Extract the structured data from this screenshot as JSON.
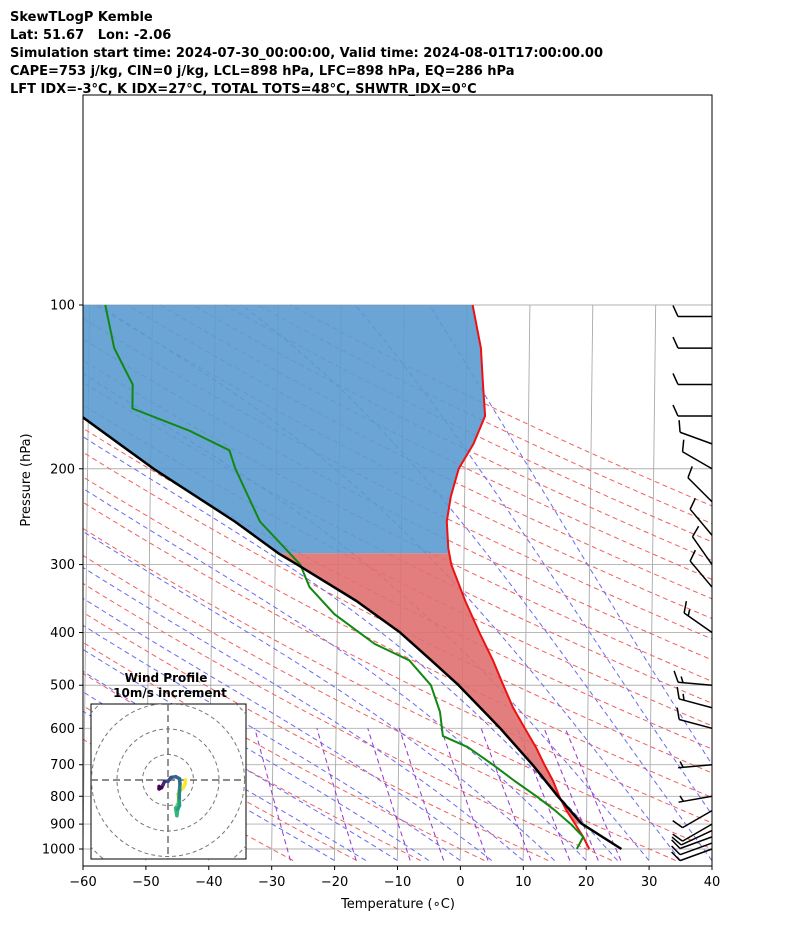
{
  "header": {
    "lines": [
      "SkewTLogP Kemble",
      "Lat: 51.67   Lon: -2.06",
      "Simulation start time: 2024-07-30_00:00:00, Valid time: 2024-08-01T17:00:00.00",
      "CAPE=753 j/kg, CIN=0 j/kg, LCL=898 hPa, LFC=898 hPa, EQ=286 hPa",
      "LFT IDX=-3°C, K IDX=27°C, TOTAL TOTS=48°C, SHWTR_IDX=0°C"
    ]
  },
  "chart_data": [
    {
      "type": "line",
      "subtype": "skew-t log-p",
      "xlabel": "Temperature (∘C)",
      "ylabel": "Pressure (hPa)",
      "xlim": [
        -60,
        40
      ],
      "ylim_hpa": [
        1050,
        100
      ],
      "y_scale": "log",
      "x_ticks": [
        "−60",
        "−50",
        "−40",
        "−30",
        "−20",
        "−10",
        "0",
        "10",
        "20",
        "30",
        "40"
      ],
      "x_tick_values": [
        -60,
        -50,
        -40,
        -30,
        -20,
        -10,
        0,
        10,
        20,
        30,
        40
      ],
      "y_ticks": [
        "100",
        "200",
        "300",
        "400",
        "500",
        "600",
        "700",
        "800",
        "900",
        "1000"
      ],
      "y_tick_values": [
        100,
        200,
        300,
        400,
        500,
        600,
        700,
        800,
        900,
        1000
      ],
      "grid": true,
      "series": [
        {
          "role": "temperature",
          "color": "#ee1111",
          "points": [
            [
              1000,
              20.5
            ],
            [
              950,
              19.5
            ],
            [
              900,
              18.2
            ],
            [
              850,
              16.8
            ],
            [
              800,
              15.6
            ],
            [
              750,
              14.6
            ],
            [
              700,
              13.2
            ],
            [
              650,
              11.8
            ],
            [
              600,
              10.0
            ],
            [
              550,
              8.1
            ],
            [
              500,
              6.5
            ],
            [
              450,
              4.8
            ],
            [
              400,
              2.6
            ],
            [
              350,
              0.3
            ],
            [
              300,
              -2.0
            ],
            [
              280,
              -2.5
            ],
            [
              250,
              -2.8
            ],
            [
              225,
              -2.2
            ],
            [
              200,
              -1.0
            ],
            [
              180,
              1.3
            ],
            [
              160,
              3.1
            ],
            [
              140,
              2.7
            ],
            [
              120,
              2.3
            ],
            [
              100,
              0.9
            ]
          ]
        },
        {
          "role": "dewpoint",
          "color": "#118811",
          "points": [
            [
              1000,
              18.5
            ],
            [
              950,
              19.5
            ],
            [
              900,
              17.5
            ],
            [
              850,
              15.0
            ],
            [
              800,
              12.0
            ],
            [
              750,
              8.5
            ],
            [
              700,
              5.0
            ],
            [
              650,
              1.0
            ],
            [
              620,
              -3.0
            ],
            [
              560,
              -3.5
            ],
            [
              500,
              -5.0
            ],
            [
              450,
              -8.5
            ],
            [
              420,
              -14.0
            ],
            [
              370,
              -20.5
            ],
            [
              330,
              -24.5
            ],
            [
              300,
              -26.0
            ],
            [
              250,
              -32.5
            ],
            [
              200,
              -36.5
            ],
            [
              185,
              -37.5
            ],
            [
              170,
              -44.0
            ],
            [
              155,
              -53.0
            ],
            [
              140,
              -53.0
            ],
            [
              120,
              -56.0
            ],
            [
              100,
              -57.5
            ]
          ]
        },
        {
          "role": "parcel",
          "color": "#000000",
          "points": [
            [
              1000,
              25.6
            ],
            [
              898,
              19.2
            ],
            [
              850,
              17.4
            ],
            [
              800,
              15.4
            ],
            [
              700,
              11.3
            ],
            [
              600,
              6.1
            ],
            [
              500,
              -0.6
            ],
            [
              450,
              -5.0
            ],
            [
              400,
              -10.0
            ],
            [
              350,
              -17.0
            ],
            [
              300,
              -26.5
            ],
            [
              286,
              -29.5
            ],
            [
              250,
              -36.5
            ],
            [
              200,
              -49.5
            ],
            [
              150,
              -64.5
            ],
            [
              120,
              -75.0
            ],
            [
              100,
              -84.5
            ]
          ]
        }
      ],
      "cape_color": "#e07070",
      "cin_color": "#5a9bd0",
      "wind_barbs": [
        {
          "p": 1000,
          "speed_kt": 10,
          "dir": 250
        },
        {
          "p": 975,
          "speed_kt": 10,
          "dir": 250
        },
        {
          "p": 950,
          "speed_kt": 10,
          "dir": 250
        },
        {
          "p": 925,
          "speed_kt": 10,
          "dir": 245
        },
        {
          "p": 900,
          "speed_kt": 10,
          "dir": 240
        },
        {
          "p": 850,
          "speed_kt": 10,
          "dir": 240
        },
        {
          "p": 800,
          "speed_kt": 5,
          "dir": 260
        },
        {
          "p": 700,
          "speed_kt": 5,
          "dir": 265
        },
        {
          "p": 600,
          "speed_kt": 10,
          "dir": 285
        },
        {
          "p": 550,
          "speed_kt": 15,
          "dir": 285
        },
        {
          "p": 500,
          "speed_kt": 15,
          "dir": 275
        },
        {
          "p": 400,
          "speed_kt": 15,
          "dir": 305
        },
        {
          "p": 330,
          "speed_kt": 10,
          "dir": 320
        },
        {
          "p": 300,
          "speed_kt": 10,
          "dir": 325
        },
        {
          "p": 265,
          "speed_kt": 10,
          "dir": 320
        },
        {
          "p": 230,
          "speed_kt": 10,
          "dir": 315
        },
        {
          "p": 200,
          "speed_kt": 10,
          "dir": 300
        },
        {
          "p": 180,
          "speed_kt": 10,
          "dir": 290
        },
        {
          "p": 160,
          "speed_kt": 10,
          "dir": 270
        },
        {
          "p": 140,
          "speed_kt": 10,
          "dir": 270
        },
        {
          "p": 120,
          "speed_kt": 10,
          "dir": 270
        },
        {
          "p": 105,
          "speed_kt": 10,
          "dir": 270
        }
      ]
    },
    {
      "type": "line",
      "subtype": "hodograph",
      "title": "Wind Profile",
      "subtitle": "10m/s increment",
      "ring_increment_ms": 10,
      "grid": true,
      "points": [
        [
          6.8,
          0.0
        ],
        [
          6.7,
          -1.5
        ],
        [
          6.0,
          -3.0
        ],
        [
          4.8,
          -4.0
        ],
        [
          4.0,
          -5.5
        ],
        [
          4.2,
          -7.5
        ],
        [
          4.0,
          -9.5
        ],
        [
          3.0,
          -11.0
        ],
        [
          3.3,
          -13.0
        ],
        [
          3.5,
          -14.0
        ],
        [
          3.8,
          -11.5
        ],
        [
          4.5,
          -10.0
        ],
        [
          4.4,
          -7.0
        ],
        [
          4.5,
          -4.0
        ],
        [
          4.7,
          -1.5
        ],
        [
          4.5,
          0.5
        ],
        [
          3.0,
          1.3
        ],
        [
          1.2,
          1.0
        ],
        [
          0.0,
          -0.5
        ],
        [
          -1.3,
          -0.5
        ],
        [
          -2.0,
          -2.0
        ],
        [
          -2.5,
          -3.0
        ],
        [
          -3.5,
          -3.5
        ],
        [
          -3.5,
          -2.5
        ]
      ]
    }
  ]
}
